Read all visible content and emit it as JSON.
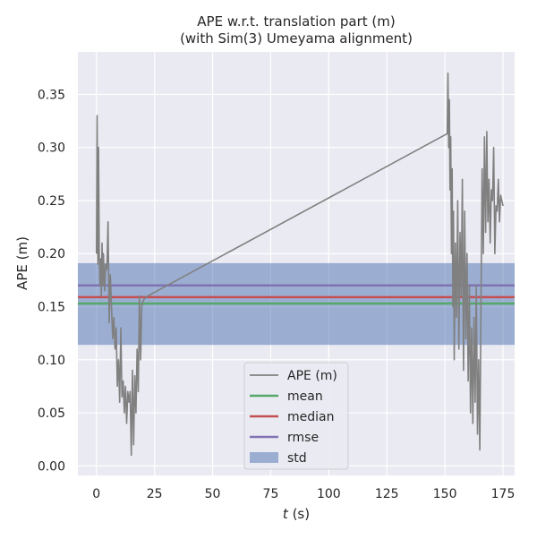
{
  "chart_data": {
    "type": "line",
    "title": "APE w.r.t. translation part (m)",
    "subtitle": "(with Sim(3) Umeyama alignment)",
    "xlabel_var": "t",
    "xlabel_unit": " (s)",
    "ylabel": "APE (m)",
    "xlim": [
      -8,
      180
    ],
    "ylim": [
      -0.009,
      0.39
    ],
    "xticks": [
      0,
      25,
      50,
      75,
      100,
      125,
      150,
      175
    ],
    "yticks": [
      0.0,
      0.05,
      0.1,
      0.15,
      0.2,
      0.25,
      0.3,
      0.35
    ],
    "ytick_labels": [
      "0.00",
      "0.05",
      "0.10",
      "0.15",
      "0.20",
      "0.25",
      "0.30",
      "0.35"
    ],
    "grid": true,
    "legend_position": "lower-center",
    "colors": {
      "background": "#eaeaf2",
      "ape": "#808080",
      "mean": "#55a868",
      "median": "#c44e52",
      "rmse": "#8172b2",
      "std": "#4c72b0"
    },
    "stats": {
      "mean": 0.153,
      "median": 0.159,
      "rmse": 0.17,
      "std_low": 0.114,
      "std_high": 0.191
    },
    "legend": [
      {
        "key": "ape",
        "label": "APE (m)",
        "kind": "line"
      },
      {
        "key": "mean",
        "label": "mean",
        "kind": "line"
      },
      {
        "key": "median",
        "label": "median",
        "kind": "line"
      },
      {
        "key": "rmse",
        "label": "rmse",
        "kind": "line"
      },
      {
        "key": "std",
        "label": "std",
        "kind": "patch"
      }
    ],
    "series": [
      {
        "name": "APE (m)",
        "x": [
          0,
          0.3,
          0.6,
          0.9,
          1.2,
          1.5,
          1.8,
          2.1,
          2.4,
          2.7,
          3,
          3.5,
          4,
          4.5,
          5,
          5.5,
          6,
          6.5,
          7,
          7.5,
          8,
          8.5,
          9,
          9.5,
          10,
          10.5,
          11,
          11.5,
          12,
          12.5,
          13,
          13.5,
          14,
          14.5,
          15,
          15.5,
          16,
          16.5,
          17,
          17.5,
          18,
          18.5,
          19,
          19.5,
          20,
          20.5,
          21,
          21.5,
          22,
          151,
          151.3,
          151.6,
          151.9,
          152.2,
          152.5,
          152.8,
          153.1,
          153.4,
          153.7,
          154,
          154.5,
          155,
          155.5,
          156,
          156.5,
          157,
          157.5,
          158,
          158.5,
          159,
          159.5,
          160,
          160.5,
          161,
          161.5,
          162,
          162.5,
          163,
          163.5,
          164,
          164.5,
          165,
          165.5,
          166,
          166.5,
          167,
          167.5,
          168,
          168.5,
          169,
          169.5,
          170,
          170.5,
          171,
          171.5,
          172,
          172.5,
          173,
          173.5,
          174,
          174.5,
          175
        ],
        "y": [
          0.2,
          0.33,
          0.19,
          0.3,
          0.2,
          0.17,
          0.195,
          0.16,
          0.21,
          0.17,
          0.2,
          0.165,
          0.19,
          0.185,
          0.23,
          0.135,
          0.18,
          0.15,
          0.12,
          0.14,
          0.11,
          0.13,
          0.075,
          0.1,
          0.06,
          0.13,
          0.065,
          0.08,
          0.05,
          0.075,
          0.04,
          0.07,
          0.06,
          0.07,
          0.01,
          0.09,
          0.02,
          0.085,
          0.05,
          0.11,
          0.07,
          0.16,
          0.1,
          0.15,
          0.155,
          0.157,
          0.158,
          0.159,
          0.16,
          0.313,
          0.37,
          0.3,
          0.345,
          0.26,
          0.31,
          0.2,
          0.28,
          0.15,
          0.24,
          0.1,
          0.21,
          0.14,
          0.25,
          0.11,
          0.22,
          0.16,
          0.27,
          0.09,
          0.24,
          0.12,
          0.2,
          0.08,
          0.17,
          0.05,
          0.13,
          0.04,
          0.14,
          0.06,
          0.17,
          0.03,
          0.1,
          0.015,
          0.15,
          0.28,
          0.2,
          0.31,
          0.22,
          0.315,
          0.23,
          0.27,
          0.21,
          0.26,
          0.25,
          0.3,
          0.2,
          0.245,
          0.24,
          0.27,
          0.23,
          0.255,
          0.25,
          0.245
        ]
      },
      {
        "name": "mean",
        "values": [
          0.153
        ]
      },
      {
        "name": "median",
        "values": [
          0.159
        ]
      },
      {
        "name": "rmse",
        "values": [
          0.17
        ]
      }
    ]
  }
}
